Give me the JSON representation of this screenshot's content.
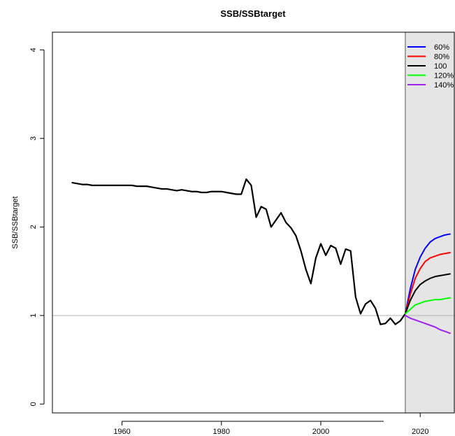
{
  "chart_data": {
    "type": "line",
    "title": "SSB/SSBtarget",
    "xlabel": "",
    "ylabel": "SSB/SSBtarget",
    "xlim": [
      1946,
      2027
    ],
    "ylim": [
      -0.1,
      4.2
    ],
    "x_ticks": [
      1960,
      1980,
      2000
    ],
    "x_tick_labels": [
      "1960",
      "1980",
      "2000"
    ],
    "x_ticks_projection": [
      2020
    ],
    "x_tick_labels_projection": [
      "2020"
    ],
    "y_ticks": [
      0,
      1,
      2,
      3,
      4
    ],
    "y_tick_labels": [
      "0",
      "1",
      "2",
      "3",
      "4"
    ],
    "reference_line": {
      "y": 1,
      "color": "#b3b3b3"
    },
    "projection_region": {
      "x_start": 2017,
      "color": "#e5e5e5"
    },
    "legend_position": "top-right",
    "historical": {
      "color": "#000000",
      "x": [
        1950,
        1951,
        1952,
        1953,
        1954,
        1955,
        1956,
        1957,
        1958,
        1959,
        1960,
        1961,
        1962,
        1963,
        1964,
        1965,
        1966,
        1967,
        1968,
        1969,
        1970,
        1971,
        1972,
        1973,
        1974,
        1975,
        1976,
        1977,
        1978,
        1979,
        1980,
        1981,
        1982,
        1983,
        1984,
        1985,
        1986,
        1987,
        1988,
        1989,
        1990,
        1991,
        1992,
        1993,
        1994,
        1995,
        1996,
        1997,
        1998,
        1999,
        2000,
        2001,
        2002,
        2003,
        2004,
        2005,
        2006,
        2007,
        2008,
        2009,
        2010,
        2011,
        2012,
        2013,
        2014,
        2015,
        2016,
        2017
      ],
      "y": [
        2.5,
        2.49,
        2.48,
        2.48,
        2.47,
        2.47,
        2.47,
        2.47,
        2.47,
        2.47,
        2.47,
        2.47,
        2.47,
        2.46,
        2.46,
        2.46,
        2.45,
        2.44,
        2.43,
        2.43,
        2.42,
        2.41,
        2.42,
        2.41,
        2.4,
        2.4,
        2.39,
        2.39,
        2.4,
        2.4,
        2.4,
        2.39,
        2.38,
        2.37,
        2.37,
        2.54,
        2.47,
        2.11,
        2.23,
        2.2,
        2.0,
        2.08,
        2.16,
        2.05,
        1.99,
        1.9,
        1.73,
        1.52,
        1.36,
        1.65,
        1.81,
        1.68,
        1.79,
        1.76,
        1.58,
        1.75,
        1.73,
        1.21,
        1.02,
        1.13,
        1.17,
        1.08,
        0.9,
        0.91,
        0.97,
        0.9,
        0.94,
        1.02
      ]
    },
    "x_projection": [
      2017,
      2018,
      2019,
      2020,
      2021,
      2022,
      2023,
      2024,
      2025,
      2026
    ],
    "series": [
      {
        "name": "60%",
        "color": "#0000ff",
        "values": [
          1.02,
          1.3,
          1.52,
          1.66,
          1.76,
          1.83,
          1.87,
          1.89,
          1.91,
          1.92
        ]
      },
      {
        "name": "80%",
        "color": "#ff0000",
        "values": [
          1.02,
          1.24,
          1.42,
          1.53,
          1.61,
          1.65,
          1.67,
          1.69,
          1.7,
          1.71
        ]
      },
      {
        "name": "100",
        "color": "#000000",
        "values": [
          1.02,
          1.17,
          1.28,
          1.35,
          1.39,
          1.42,
          1.44,
          1.45,
          1.46,
          1.47
        ]
      },
      {
        "name": "120%",
        "color": "#00ff00",
        "values": [
          1.02,
          1.07,
          1.12,
          1.14,
          1.16,
          1.17,
          1.18,
          1.18,
          1.19,
          1.2
        ]
      },
      {
        "name": "140%",
        "color": "#a020f0",
        "values": [
          1.0,
          0.97,
          0.95,
          0.93,
          0.91,
          0.89,
          0.87,
          0.84,
          0.82,
          0.8
        ]
      }
    ]
  }
}
